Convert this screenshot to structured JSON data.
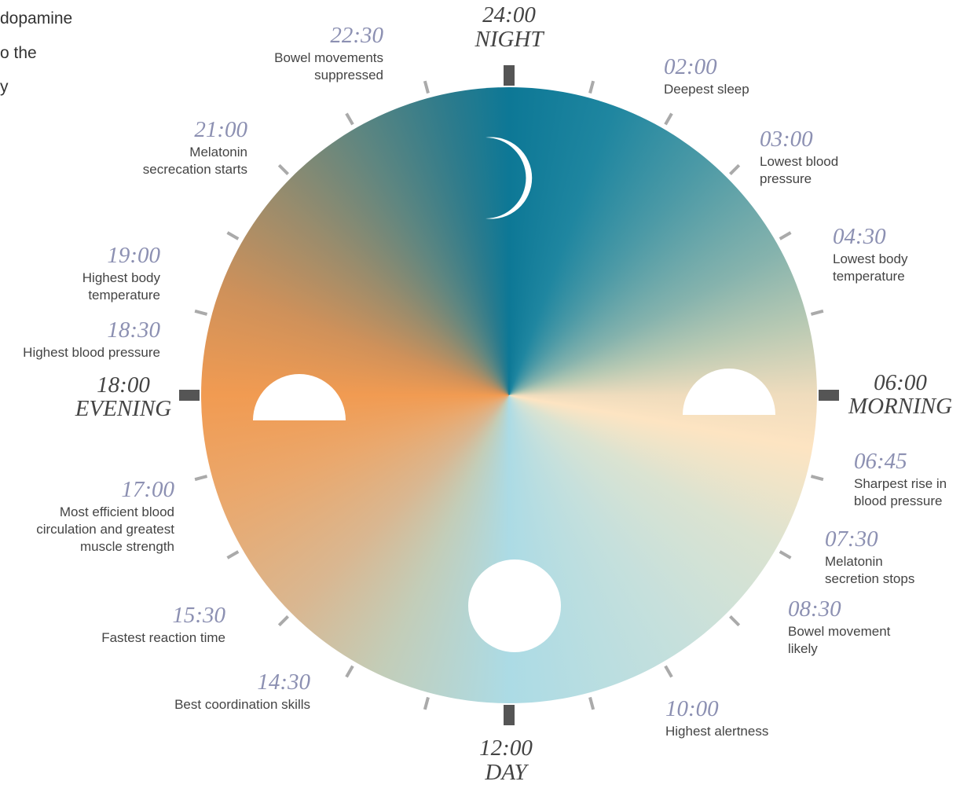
{
  "intro_fragment": [
    "dopamine",
    "o the",
    "y"
  ],
  "markers": [
    {
      "time": "24:00",
      "label": "NIGHT"
    },
    {
      "time": "06:00",
      "label": "MORNING"
    },
    {
      "time": "12:00",
      "label": "DAY"
    },
    {
      "time": "18:00",
      "label": "EVENING"
    }
  ],
  "events": [
    {
      "time": "22:30",
      "description": [
        "Bowel movements",
        "suppressed"
      ]
    },
    {
      "time": "02:00",
      "description": [
        "Deepest sleep"
      ]
    },
    {
      "time": "21:00",
      "description": [
        "Melatonin",
        "secrecation starts"
      ]
    },
    {
      "time": "03:00",
      "description": [
        "Lowest blood",
        "pressure"
      ]
    },
    {
      "time": "04:30",
      "description": [
        "Lowest body",
        "temperature"
      ]
    },
    {
      "time": "19:00",
      "description": [
        "Highest body",
        "temperature"
      ]
    },
    {
      "time": "18:30",
      "description": [
        "Highest blood pressure"
      ]
    },
    {
      "time": "06:45",
      "description": [
        "Sharpest rise in",
        "blood pressure"
      ]
    },
    {
      "time": "17:00",
      "description": [
        "Most efficient blood",
        "circulation and greatest",
        "muscle strength"
      ]
    },
    {
      "time": "07:30",
      "description": [
        "Melatonin",
        "secretion stops"
      ]
    },
    {
      "time": "08:30",
      "description": [
        "Bowel movement",
        "likely"
      ]
    },
    {
      "time": "15:30",
      "description": [
        "Fastest reaction time"
      ]
    },
    {
      "time": "14:30",
      "description": [
        "Best coordination skills"
      ]
    },
    {
      "time": "10:00",
      "description": [
        "Highest alertness"
      ]
    }
  ]
}
